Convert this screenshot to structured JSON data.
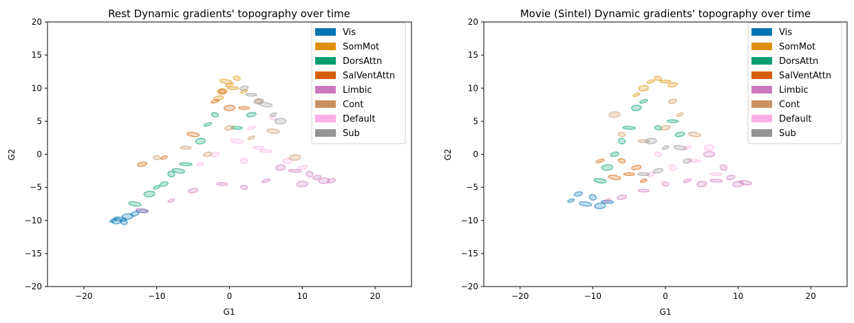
{
  "chart_data": [
    {
      "type": "scatter",
      "title": "Rest Dynamic gradients' topography over time",
      "xlabel": "G1",
      "ylabel": "G2",
      "xlim": [
        -25,
        25
      ],
      "ylim": [
        -20,
        20
      ],
      "xticks": [
        "−20",
        "−10",
        "0",
        "10",
        "20"
      ],
      "xtick_values": [
        -20,
        -10,
        0,
        10,
        20
      ],
      "yticks": [
        "20",
        "15",
        "10",
        "5",
        "0",
        "−5",
        "−10",
        "−15",
        "−20"
      ],
      "ytick_values": [
        20,
        15,
        10,
        5,
        0,
        -5,
        -10,
        -15,
        -20
      ],
      "grid": false,
      "legend_position": "top-right",
      "marker": "ellipse",
      "series": [
        {
          "name": "Vis",
          "color": "#0173b2",
          "points": [
            [
              -16,
              -10
            ],
            [
              -15,
              -9.8
            ],
            [
              -14,
              -9.4
            ],
            [
              -13,
              -9
            ],
            [
              -14.5,
              -10.2
            ],
            [
              -12,
              -8.6
            ],
            [
              -15.5,
              -10.1
            ]
          ]
        },
        {
          "name": "SomMot",
          "color": "#de8f05",
          "points": [
            [
              -1,
              9.5
            ],
            [
              0,
              10.5
            ],
            [
              1,
              11.5
            ],
            [
              0.5,
              10
            ],
            [
              -1.5,
              8.5
            ],
            [
              2,
              9.5
            ],
            [
              -0.5,
              11
            ]
          ]
        },
        {
          "name": "DorsAttn",
          "color": "#029e73",
          "points": [
            [
              -13,
              -7.5
            ],
            [
              -11,
              -6
            ],
            [
              -9,
              -4.5
            ],
            [
              -8,
              -3
            ],
            [
              -6,
              -1.5
            ],
            [
              -4,
              2
            ],
            [
              -3,
              4.5
            ],
            [
              -2,
              6
            ],
            [
              1,
              4
            ],
            [
              3,
              6
            ],
            [
              -10,
              -5
            ],
            [
              -7,
              -2.5
            ]
          ]
        },
        {
          "name": "SalVentAttn",
          "color": "#d55e00",
          "points": [
            [
              -2,
              8
            ],
            [
              -1,
              9.5
            ],
            [
              2,
              7
            ],
            [
              -12,
              -1.5
            ],
            [
              -9,
              -0.5
            ],
            [
              -5,
              3
            ],
            [
              0,
              7
            ]
          ]
        },
        {
          "name": "Limbic",
          "color": "#cc78bc",
          "points": [
            [
              13,
              -4
            ],
            [
              12,
              -3.5
            ],
            [
              11,
              -3
            ],
            [
              9,
              -2.5
            ],
            [
              7,
              -2
            ],
            [
              5,
              -4
            ],
            [
              2,
              -5
            ],
            [
              -1,
              -4.5
            ],
            [
              -5,
              -5.5
            ],
            [
              -8,
              -7
            ],
            [
              -12,
              -8.5
            ],
            [
              10,
              -4.5
            ],
            [
              14,
              -4
            ]
          ]
        },
        {
          "name": "Cont",
          "color": "#ca9161",
          "points": [
            [
              -10,
              -0.5
            ],
            [
              -6,
              1
            ],
            [
              0,
              4
            ],
            [
              3,
              2.5
            ],
            [
              6,
              3.5
            ],
            [
              9,
              -0.5
            ],
            [
              -3,
              0
            ],
            [
              4,
              8
            ]
          ]
        },
        {
          "name": "Default",
          "color": "#fbafe4",
          "points": [
            [
              -2,
              0
            ],
            [
              2,
              -1
            ],
            [
              5,
              0.5
            ],
            [
              8,
              -1
            ],
            [
              3,
              4
            ],
            [
              6,
              5.5
            ],
            [
              4,
              1
            ],
            [
              10,
              -2
            ],
            [
              -4,
              -1.5
            ],
            [
              1,
              2
            ]
          ]
        },
        {
          "name": "Sub",
          "color": "#949494",
          "points": [
            [
              3,
              9
            ],
            [
              4,
              8
            ],
            [
              6,
              6
            ],
            [
              5,
              7.5
            ],
            [
              7,
              5
            ],
            [
              2,
              10
            ]
          ]
        }
      ]
    },
    {
      "type": "scatter",
      "title": "Movie (Sintel) Dynamic gradients' topography over time",
      "xlabel": "G1",
      "ylabel": "G2",
      "xlim": [
        -25,
        25
      ],
      "ylim": [
        -20,
        20
      ],
      "xticks": [
        "−20",
        "−10",
        "0",
        "10",
        "20"
      ],
      "xtick_values": [
        -20,
        -10,
        0,
        10,
        20
      ],
      "yticks": [
        "20",
        "15",
        "10",
        "5",
        "0",
        "−5",
        "−10",
        "−15",
        "−20"
      ],
      "ytick_values": [
        20,
        15,
        10,
        5,
        0,
        -5,
        -10,
        -15,
        -20
      ],
      "grid": false,
      "legend_position": "top-right",
      "marker": "ellipse",
      "series": [
        {
          "name": "Vis",
          "color": "#0173b2",
          "points": [
            [
              -13,
              -7
            ],
            [
              -11,
              -7.5
            ],
            [
              -9,
              -7.8
            ],
            [
              -12,
              -6
            ],
            [
              -10,
              -6.5
            ],
            [
              -8,
              -7.2
            ]
          ]
        },
        {
          "name": "SomMot",
          "color": "#de8f05",
          "points": [
            [
              -3,
              10
            ],
            [
              -2,
              11
            ],
            [
              -1,
              11.5
            ],
            [
              0,
              11
            ],
            [
              1,
              10.5
            ],
            [
              -4,
              9
            ]
          ]
        },
        {
          "name": "DorsAttn",
          "color": "#029e73",
          "points": [
            [
              -9,
              -4
            ],
            [
              -8,
              -2
            ],
            [
              -7,
              0
            ],
            [
              -6,
              2
            ],
            [
              -5,
              4
            ],
            [
              -4,
              7
            ],
            [
              -3,
              8
            ],
            [
              -1,
              4
            ],
            [
              1,
              5
            ],
            [
              2,
              3
            ]
          ]
        },
        {
          "name": "SalVentAttn",
          "color": "#d55e00",
          "points": [
            [
              -9,
              -1
            ],
            [
              -6,
              -1
            ],
            [
              -5,
              -3
            ],
            [
              -4,
              -2
            ],
            [
              -3,
              -4
            ],
            [
              -7,
              -3.5
            ]
          ]
        },
        {
          "name": "Limbic",
          "color": "#cc78bc",
          "points": [
            [
              10,
              -4.5
            ],
            [
              9,
              -3.5
            ],
            [
              8,
              -2
            ],
            [
              7,
              -4
            ],
            [
              5,
              -4.5
            ],
            [
              3,
              -4
            ],
            [
              0,
              -4.5
            ],
            [
              -3,
              -5.5
            ],
            [
              -6,
              -6.5
            ],
            [
              -8,
              -7
            ],
            [
              11,
              -4.3
            ],
            [
              6,
              0
            ]
          ]
        },
        {
          "name": "Cont",
          "color": "#ca9161",
          "points": [
            [
              -6,
              3
            ],
            [
              -3,
              2
            ],
            [
              0,
              4
            ],
            [
              2,
              6
            ],
            [
              4,
              3
            ],
            [
              -7,
              6
            ],
            [
              1,
              8
            ]
          ]
        },
        {
          "name": "Default",
          "color": "#fbafe4",
          "points": [
            [
              -2,
              -3
            ],
            [
              1,
              -2
            ],
            [
              4,
              -1
            ],
            [
              6,
              1
            ],
            [
              3,
              1
            ],
            [
              -1,
              0
            ],
            [
              7,
              -3
            ]
          ]
        },
        {
          "name": "Sub",
          "color": "#949494",
          "points": [
            [
              -3,
              -3
            ],
            [
              -1,
              -2.5
            ],
            [
              0,
              1
            ],
            [
              2,
              1
            ],
            [
              -2,
              2
            ],
            [
              3,
              -1
            ]
          ]
        }
      ]
    }
  ]
}
